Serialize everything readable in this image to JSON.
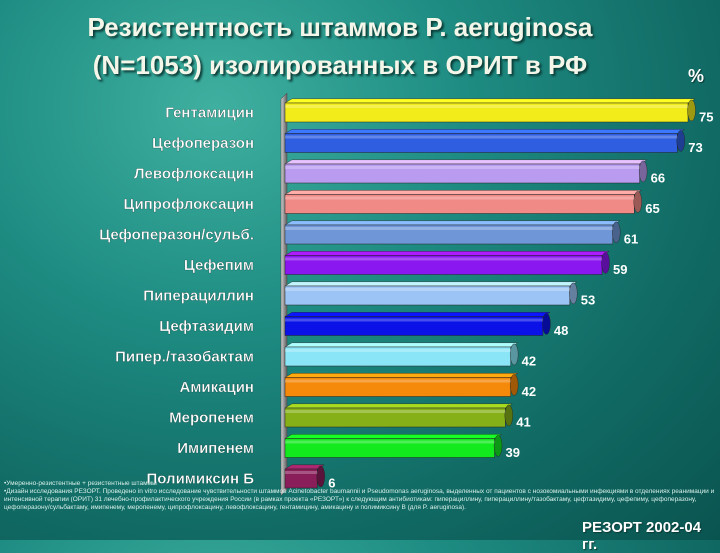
{
  "title_line1": "Резистентность  штаммов P. aeruginosa",
  "title_line2": "(N=1053)  изолированных в ОРИТ в   РФ",
  "unit_label": "%",
  "footnote_line1": "•Умеренно-резистентные + резистентные штаммы",
  "footnote_line2": "•Дизайн исследования РЕЗОРТ. Проведено in vitro исследование чувствительности штаммов Acinetobacter baumannii и Pseudomonas aeruginosa, выделенных от пациентов с нозокомиальными инфекциями в отделениях реанимации и интенсивной терапии (ОРИТ) 31 лечебно-профилактического учреждения России (в рамках проекта «РЕЗОРТ») к следующим антибиотикам: пиперациллину, пиперациллину/тазобактаму, цефтазидиму, цефепиму, цефоперазону, цефоперазону/сульбактаму, имипенему, меропенему, ципрофлоксацину, левофлоксацину, гентамицину, амикацину и полимиксину В (для P. aeruginosa).",
  "source_label": "РЕЗОРТ 2002-04 гг.",
  "chart_data": {
    "type": "bar",
    "orientation": "horizontal",
    "categories": [
      "Гентамицин",
      "Цефоперазон",
      "Левофлоксацин",
      "Ципрофлоксацин",
      "Цефоперазон/сульб.",
      "Цефепим",
      "Пиперациллин",
      "Цефтазидим",
      "Пипер./тазобактам",
      "Амикацин",
      "Меропенем",
      "Имипенем",
      "Полимиксин Б"
    ],
    "values": [
      75,
      73,
      66,
      65,
      61,
      59,
      53,
      48,
      42,
      42,
      41,
      39,
      6
    ],
    "colors": [
      "#f2ec1a",
      "#2f5fe0",
      "#b99bf0",
      "#f08a86",
      "#6f97d8",
      "#8a16f0",
      "#9cc4f4",
      "#0a12e8",
      "#8ae6f6",
      "#f5890a",
      "#86b018",
      "#12ea1e",
      "#8a1e5a"
    ],
    "value_unit": "%",
    "xlim": [
      0,
      75
    ],
    "grid": false,
    "legend": "none"
  }
}
